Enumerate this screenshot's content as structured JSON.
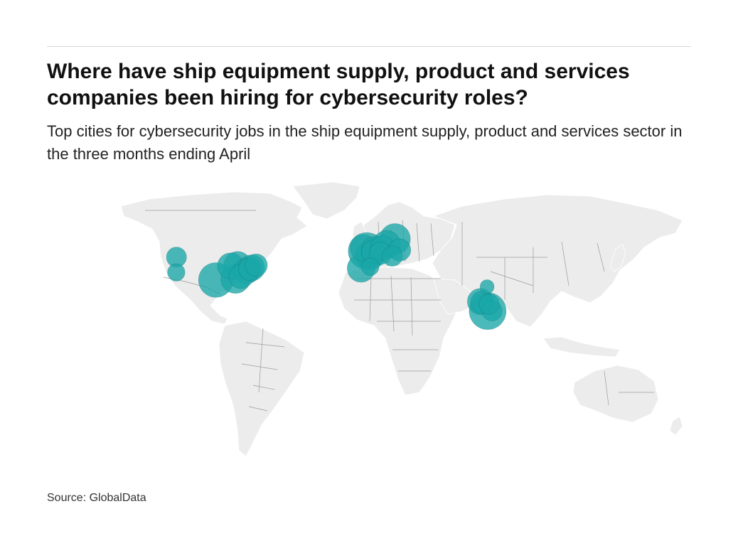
{
  "header": {
    "title": "Where have ship equipment supply, product and services companies been hiring for cybersecurity roles?",
    "subtitle": "Top cities for cybersecurity jobs in the ship equipment supply, product and services sector in the three months ending April"
  },
  "footer": {
    "source": "Source: GlobalData"
  },
  "colors": {
    "bubble": "#1aa6a8",
    "land": "#ececec",
    "borders": "#9a9a9a"
  },
  "chart_data": {
    "type": "scatter",
    "title": "Where have ship equipment supply, product and services companies been hiring for cybersecurity roles?",
    "subtitle": "Top cities for cybersecurity jobs in the ship equipment supply, product and services sector in the three months ending April",
    "map": "world",
    "points": [
      {
        "lon": -122.3,
        "lat": 47.6,
        "size": 3
      },
      {
        "lon": -122.4,
        "lat": 37.8,
        "size": 2
      },
      {
        "lon": -97.0,
        "lat": 32.9,
        "size": 12
      },
      {
        "lon": -87.6,
        "lat": 41.9,
        "size": 6
      },
      {
        "lon": -84.4,
        "lat": 33.7,
        "size": 8
      },
      {
        "lon": -83.0,
        "lat": 42.3,
        "size": 7
      },
      {
        "lon": -80.8,
        "lat": 35.2,
        "size": 5
      },
      {
        "lon": -77.0,
        "lat": 38.9,
        "size": 6
      },
      {
        "lon": -75.2,
        "lat": 39.9,
        "size": 4
      },
      {
        "lon": -74.0,
        "lat": 40.7,
        "size": 6
      },
      {
        "lon": -71.1,
        "lat": 42.4,
        "size": 4
      },
      {
        "lon": -3.7,
        "lat": 40.4,
        "size": 7
      },
      {
        "lon": 2.2,
        "lat": 41.4,
        "size": 2
      },
      {
        "lon": -0.1,
        "lat": 51.5,
        "size": 14
      },
      {
        "lon": -2.2,
        "lat": 53.5,
        "size": 6
      },
      {
        "lon": 2.3,
        "lat": 48.9,
        "size": 8
      },
      {
        "lon": 4.9,
        "lat": 52.4,
        "size": 6
      },
      {
        "lon": 4.4,
        "lat": 50.9,
        "size": 5
      },
      {
        "lon": 8.7,
        "lat": 50.1,
        "size": 4
      },
      {
        "lon": 10.0,
        "lat": 53.6,
        "size": 5
      },
      {
        "lon": 12.6,
        "lat": 55.7,
        "size": 7
      },
      {
        "lon": 18.1,
        "lat": 59.3,
        "size": 9
      },
      {
        "lon": 16.4,
        "lat": 48.2,
        "size": 3
      },
      {
        "lon": 21.0,
        "lat": 52.2,
        "size": 4
      },
      {
        "lon": 77.2,
        "lat": 28.6,
        "size": 1
      },
      {
        "lon": 72.9,
        "lat": 19.1,
        "size": 6
      },
      {
        "lon": 73.9,
        "lat": 18.5,
        "size": 4
      },
      {
        "lon": 77.6,
        "lat": 12.97,
        "size": 14
      },
      {
        "lon": 80.3,
        "lat": 13.1,
        "size": 3
      },
      {
        "lon": 78.5,
        "lat": 17.4,
        "size": 3
      }
    ]
  }
}
